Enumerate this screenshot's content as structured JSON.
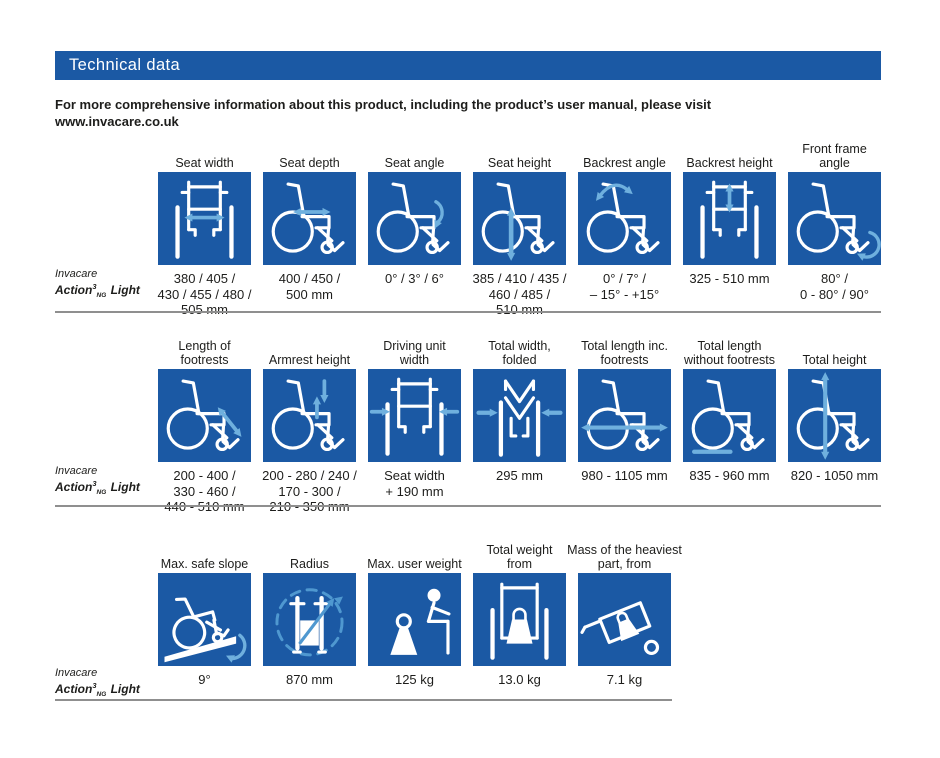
{
  "header": {
    "title": "Technical data"
  },
  "intro": {
    "text": "For more comprehensive information about this product, including the product’s user manual, please visit\nwww.invacare.co.uk"
  },
  "product": {
    "brand": "Invacare",
    "model_name": "Action",
    "model_sup": "3",
    "model_sub": "NG",
    "model_rest": " Light"
  },
  "colors": {
    "tile_blue": "#1b59a4",
    "accent_light_blue": "#6fb0de",
    "accent_mid_blue": "#4f98d0",
    "text": "#1d1d1b",
    "rule_gray": "#8f8f8f",
    "title_text": "#ffffff"
  },
  "rows": [
    {
      "tiles": [
        {
          "label": "Seat width",
          "value": "380 / 405 /\n430 / 455 / 480 /\n505 mm",
          "icon": "seat-width"
        },
        {
          "label": "Seat depth",
          "value": "400 / 450 /\n500 mm",
          "icon": "seat-depth"
        },
        {
          "label": "Seat angle",
          "value": "0° / 3° / 6°",
          "icon": "seat-angle"
        },
        {
          "label": "Seat height",
          "value": "385 / 410 / 435 /\n460 / 485 /\n510 mm",
          "icon": "seat-height"
        },
        {
          "label": "Backrest angle",
          "value": "0° / 7° /\n– 15° - +15°",
          "icon": "backrest-angle"
        },
        {
          "label": "Backrest height",
          "value": "325 - 510 mm",
          "icon": "backrest-height"
        },
        {
          "label": "Front frame\nangle",
          "value": "80° /\n0 - 80° / 90°",
          "icon": "front-frame-angle"
        }
      ]
    },
    {
      "tiles": [
        {
          "label": "Length of\nfootrests",
          "value": "200 - 400 /\n330 - 460 /\n440 - 510 mm",
          "icon": "footrest-length"
        },
        {
          "label": "Armrest height",
          "value": "200 - 280 / 240 /\n170 - 300 /\n210 - 350 mm",
          "icon": "armrest-height"
        },
        {
          "label": "Driving unit\nwidth",
          "value": "Seat width\n+ 190 mm",
          "icon": "driving-unit-width"
        },
        {
          "label": "Total width,\nfolded",
          "value": "295 mm",
          "icon": "total-width-folded"
        },
        {
          "label": "Total length inc.\nfootrests",
          "value": "980 - 1105 mm",
          "icon": "total-length-inc-footrests"
        },
        {
          "label": "Total length\nwithout footrests",
          "value": "835 - 960 mm",
          "icon": "total-length-without-footrests"
        },
        {
          "label": "Total height",
          "value": "820 - 1050 mm",
          "icon": "total-height"
        }
      ]
    },
    {
      "tiles": [
        {
          "label": "Max. safe slope",
          "value": "9°",
          "icon": "max-safe-slope"
        },
        {
          "label": "Radius",
          "value": "870 mm",
          "icon": "radius"
        },
        {
          "label": "Max. user weight",
          "value": "125 kg",
          "icon": "max-user-weight"
        },
        {
          "label": "Total weight\nfrom",
          "value": "13.0 kg",
          "icon": "total-weight"
        },
        {
          "label": "Mass of the heaviest\npart, from",
          "value": "7.1 kg",
          "icon": "mass-heaviest-part"
        }
      ]
    }
  ]
}
